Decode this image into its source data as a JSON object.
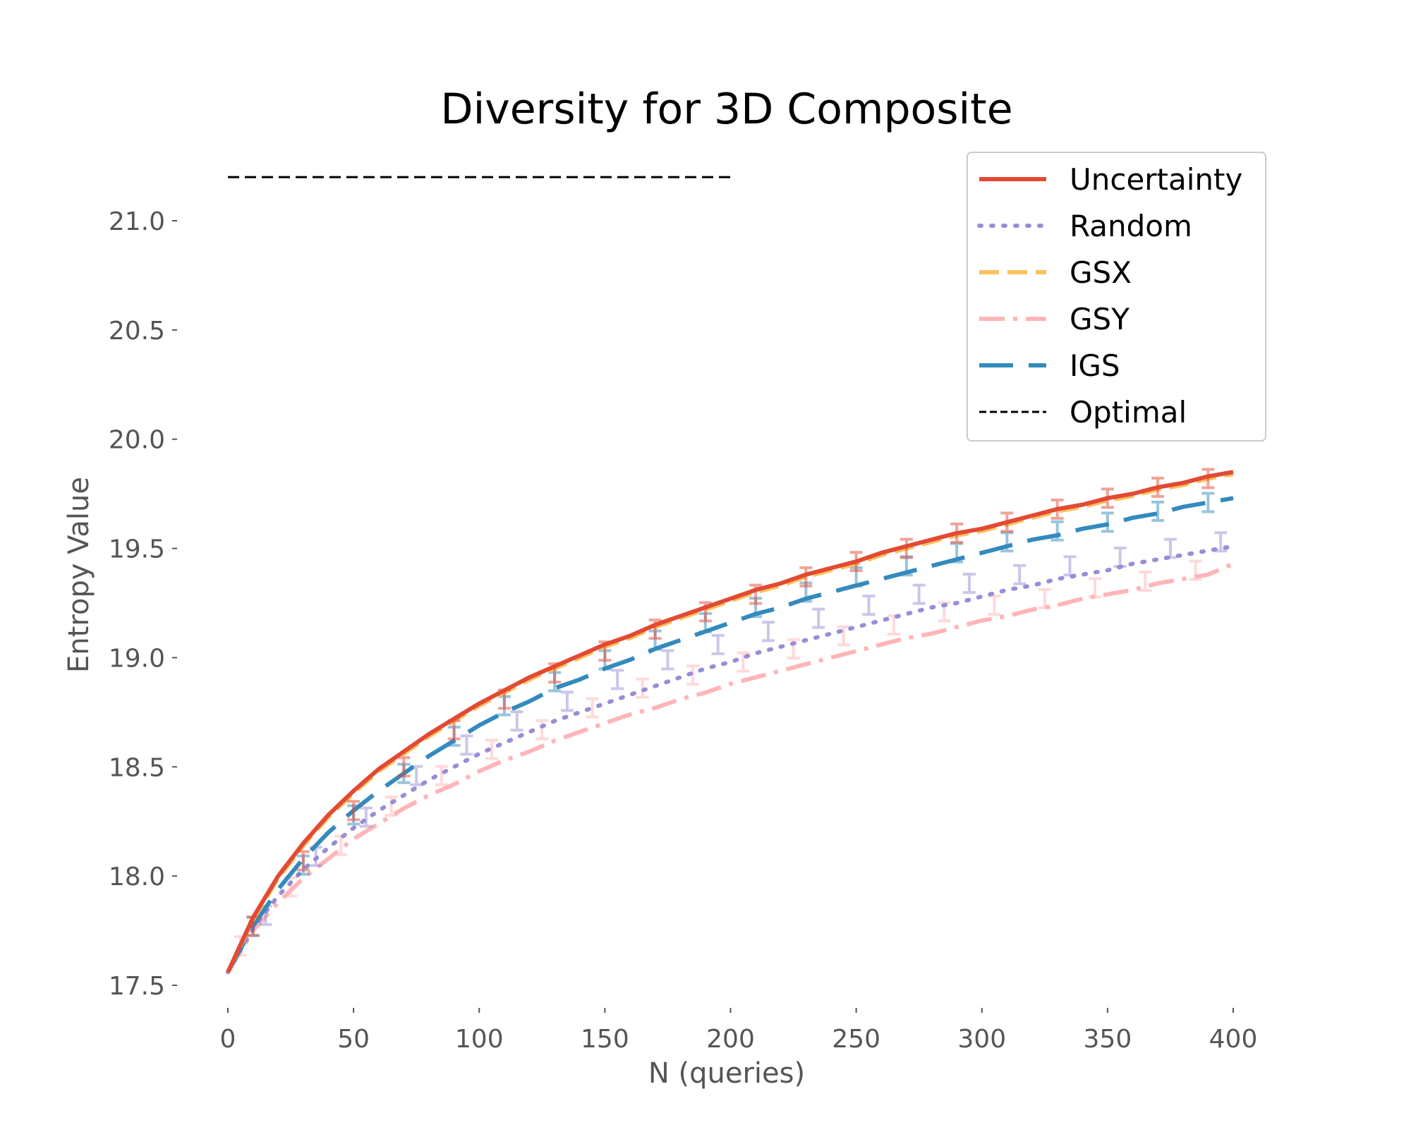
{
  "chart_data": {
    "type": "line",
    "title": "Diversity for 3D Composite",
    "xlabel": "N (queries)",
    "ylabel": "Entropy Value",
    "xlim": [
      0,
      400
    ],
    "ylim": [
      17.45,
      21.2
    ],
    "xticks": [
      0,
      50,
      100,
      150,
      200,
      250,
      300,
      350,
      400
    ],
    "xtick_labels": [
      "0",
      "50",
      "100",
      "150",
      "200",
      "250",
      "300",
      "350",
      "400"
    ],
    "yticks": [
      17.5,
      18.0,
      18.5,
      19.0,
      19.5,
      20.0,
      20.5,
      21.0
    ],
    "ytick_labels": [
      "17.5",
      "18.0",
      "18.5",
      "19.0",
      "19.5",
      "20.0",
      "20.5",
      "21.0"
    ],
    "grid": false,
    "legend_position": "top-right",
    "x": [
      0,
      10,
      20,
      30,
      40,
      50,
      60,
      70,
      80,
      90,
      100,
      110,
      120,
      130,
      140,
      150,
      160,
      170,
      180,
      190,
      200,
      210,
      220,
      230,
      240,
      250,
      260,
      270,
      280,
      290,
      300,
      310,
      320,
      330,
      340,
      350,
      360,
      370,
      380,
      390,
      400
    ],
    "series": [
      {
        "name": "Uncertainty",
        "color": "#E24A33",
        "style": "solid",
        "values": [
          17.56,
          17.81,
          18.0,
          18.15,
          18.28,
          18.39,
          18.49,
          18.57,
          18.65,
          18.72,
          18.79,
          18.85,
          18.91,
          18.96,
          19.01,
          19.06,
          19.1,
          19.15,
          19.19,
          19.23,
          19.27,
          19.31,
          19.34,
          19.38,
          19.41,
          19.44,
          19.48,
          19.51,
          19.54,
          19.57,
          19.59,
          19.62,
          19.65,
          19.68,
          19.7,
          19.73,
          19.75,
          19.78,
          19.8,
          19.83,
          19.85
        ],
        "error_x": [
          10,
          30,
          50,
          70,
          90,
          110,
          130,
          150,
          170,
          190,
          210,
          230,
          250,
          270,
          290,
          310,
          330,
          350,
          370,
          390
        ],
        "error_y": [
          17.77,
          18.07,
          18.3,
          18.5,
          18.67,
          18.81,
          18.93,
          19.03,
          19.13,
          19.21,
          19.29,
          19.37,
          19.44,
          19.5,
          19.57,
          19.62,
          19.68,
          19.73,
          19.78,
          19.82
        ]
      },
      {
        "name": "Random",
        "color": "#988ED5",
        "style": "dotted",
        "values": [
          17.56,
          17.76,
          17.91,
          18.03,
          18.13,
          18.22,
          18.3,
          18.37,
          18.44,
          18.5,
          18.56,
          18.61,
          18.66,
          18.71,
          18.75,
          18.79,
          18.83,
          18.87,
          18.91,
          18.95,
          18.98,
          19.02,
          19.05,
          19.08,
          19.11,
          19.14,
          19.17,
          19.2,
          19.23,
          19.25,
          19.28,
          19.31,
          19.33,
          19.36,
          19.38,
          19.4,
          19.43,
          19.45,
          19.47,
          19.49,
          19.51
        ],
        "error_x": [
          15,
          35,
          55,
          75,
          95,
          115,
          135,
          155,
          175,
          195,
          215,
          235,
          255,
          275,
          295,
          315,
          335,
          355,
          375,
          395
        ],
        "error_y": [
          17.82,
          18.09,
          18.27,
          18.46,
          18.6,
          18.71,
          18.8,
          18.9,
          18.99,
          19.06,
          19.12,
          19.18,
          19.24,
          19.29,
          19.34,
          19.38,
          19.42,
          19.46,
          19.5,
          19.53
        ]
      },
      {
        "name": "GSX",
        "color": "#FBC15E",
        "style": "dashed",
        "values": [
          17.56,
          17.8,
          17.99,
          18.14,
          18.27,
          18.38,
          18.48,
          18.56,
          18.64,
          18.71,
          18.78,
          18.84,
          18.9,
          18.95,
          19.0,
          19.05,
          19.09,
          19.14,
          19.18,
          19.22,
          19.26,
          19.3,
          19.33,
          19.37,
          19.4,
          19.43,
          19.47,
          19.5,
          19.53,
          19.56,
          19.58,
          19.61,
          19.64,
          19.67,
          19.69,
          19.72,
          19.74,
          19.77,
          19.79,
          19.82,
          19.84
        ]
      },
      {
        "name": "GSY",
        "color": "#FFB5B8",
        "style": "dashdot",
        "values": [
          17.56,
          17.75,
          17.88,
          17.99,
          18.08,
          18.17,
          18.24,
          18.31,
          18.37,
          18.42,
          18.48,
          18.53,
          18.57,
          18.62,
          18.66,
          18.7,
          18.74,
          18.77,
          18.81,
          18.84,
          18.88,
          18.91,
          18.94,
          18.97,
          19.0,
          19.03,
          19.06,
          19.09,
          19.11,
          19.14,
          19.17,
          19.19,
          19.22,
          19.24,
          19.27,
          19.29,
          19.31,
          19.34,
          19.36,
          19.38,
          19.43
        ],
        "error_x": [
          5,
          25,
          45,
          65,
          85,
          105,
          125,
          145,
          165,
          185,
          205,
          225,
          245,
          265,
          285,
          305,
          325,
          345,
          365,
          385
        ],
        "error_y": [
          17.68,
          17.95,
          18.14,
          18.32,
          18.46,
          18.58,
          18.67,
          18.77,
          18.86,
          18.92,
          18.98,
          19.04,
          19.1,
          19.15,
          19.21,
          19.24,
          19.27,
          19.32,
          19.35,
          19.4
        ]
      },
      {
        "name": "IGS",
        "color": "#348ABD",
        "style": "longdash",
        "values": [
          17.56,
          17.77,
          17.94,
          18.08,
          18.2,
          18.3,
          18.39,
          18.47,
          18.55,
          18.62,
          18.69,
          18.75,
          18.8,
          18.86,
          18.9,
          18.95,
          18.99,
          19.04,
          19.08,
          19.12,
          19.16,
          19.2,
          19.23,
          19.27,
          19.3,
          19.33,
          19.36,
          19.39,
          19.42,
          19.45,
          19.48,
          19.51,
          19.54,
          19.56,
          19.59,
          19.61,
          19.64,
          19.66,
          19.69,
          19.71,
          19.73
        ],
        "error_x": [
          10,
          30,
          50,
          70,
          90,
          110,
          130,
          150,
          170,
          190,
          210,
          230,
          250,
          270,
          290,
          310,
          330,
          350,
          370,
          390
        ],
        "error_y": [
          17.77,
          18.05,
          18.28,
          18.47,
          18.64,
          18.78,
          18.89,
          18.99,
          19.08,
          19.16,
          19.23,
          19.3,
          19.37,
          19.42,
          19.48,
          19.53,
          19.58,
          19.62,
          19.67,
          19.71
        ]
      },
      {
        "name": "Optimal",
        "color": "#000000",
        "style": "dashed-thin",
        "x_values": [
          0,
          200
        ],
        "values": [
          21.2,
          21.2
        ]
      }
    ]
  }
}
